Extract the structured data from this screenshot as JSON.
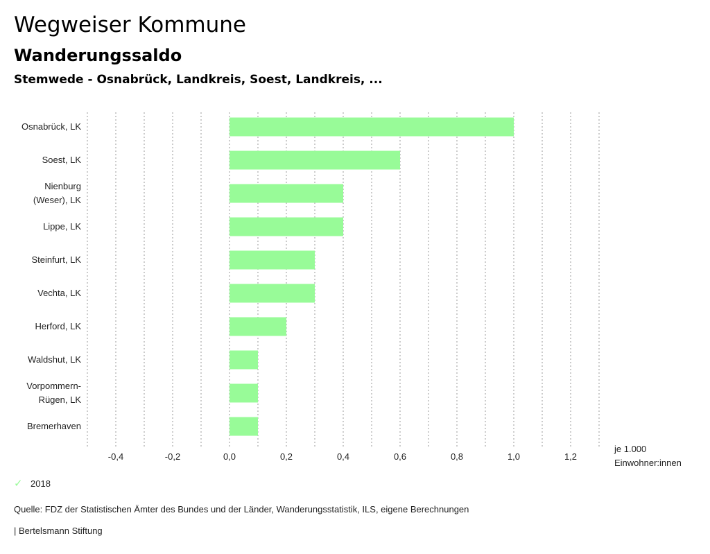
{
  "header": {
    "title": "Wegweiser Kommune",
    "subtitle": "Wanderungssaldo",
    "subsubtitle": "Stemwede - Osnabrück, Landkreis, Soest, Landkreis, ..."
  },
  "chart_data": {
    "type": "bar",
    "orientation": "horizontal",
    "categories": [
      [
        "Osnabrück, LK"
      ],
      [
        "Soest, LK"
      ],
      [
        "Nienburg",
        "(Weser), LK"
      ],
      [
        "Lippe, LK"
      ],
      [
        "Steinfurt, LK"
      ],
      [
        "Vechta, LK"
      ],
      [
        "Herford, LK"
      ],
      [
        "Waldshut, LK"
      ],
      [
        "Vorpommern-",
        "Rügen, LK"
      ],
      [
        "Bremerhaven"
      ]
    ],
    "series": [
      {
        "name": "2018",
        "values": [
          1.0,
          0.6,
          0.4,
          0.4,
          0.3,
          0.3,
          0.2,
          0.1,
          0.1,
          0.1
        ],
        "color": "#98fb98"
      }
    ],
    "xlim": [
      -0.5,
      1.3
    ],
    "xticks": [
      -0.4,
      -0.2,
      0.0,
      0.2,
      0.4,
      0.6,
      0.8,
      1.0,
      1.2
    ],
    "xtick_labels": [
      "-0,4",
      "-0,2",
      "0,0",
      "0,2",
      "0,4",
      "0,6",
      "0,8",
      "1,0",
      "1,2"
    ],
    "gridlines": [
      -0.5,
      -0.4,
      -0.3,
      -0.2,
      -0.1,
      0.0,
      0.1,
      0.2,
      0.3,
      0.4,
      0.5,
      0.6,
      0.7,
      0.8,
      0.9,
      1.0,
      1.1,
      1.2,
      1.3
    ],
    "unit_label": [
      "je 1.000",
      "Einwohner:innen"
    ],
    "grid": true
  },
  "legend": {
    "items": [
      {
        "label": "2018",
        "color": "#98fb98"
      }
    ]
  },
  "footer": {
    "source": "Quelle: FDZ der Statistischen Ämter des Bundes und der Länder, Wanderungsstatistik, ILS, eigene Berechnungen",
    "credit": "| Bertelsmann Stiftung"
  }
}
